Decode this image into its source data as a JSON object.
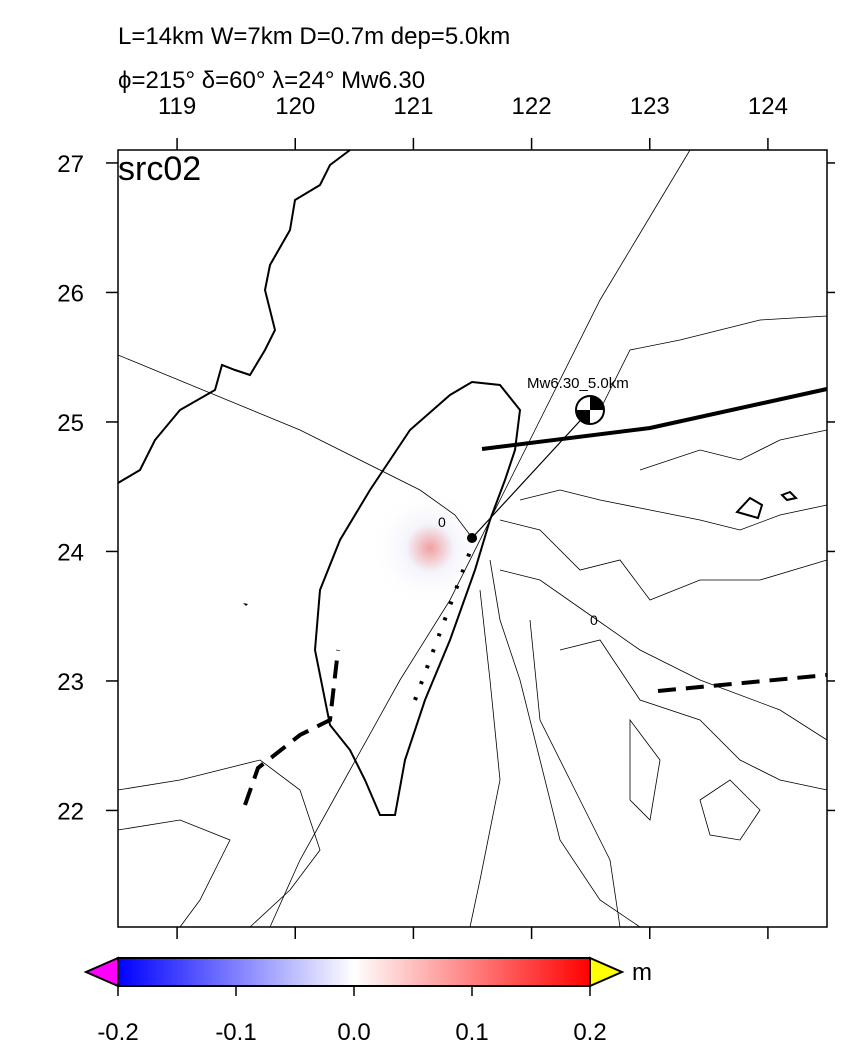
{
  "chart_data": {
    "type": "map",
    "title": "L=14km W=7km D=0.7m dep=5.0km",
    "subtitle": "ϕ=215° δ=60° λ=24° Mw6.30",
    "panel_label": "src02",
    "event_label": "Mw6.30_5.0km",
    "contour_labels": [
      "0",
      "0"
    ],
    "xlim": [
      118.5,
      124.5
    ],
    "xticks": [
      119,
      120,
      121,
      122,
      123,
      124
    ],
    "ylim": [
      21.1,
      27.1
    ],
    "yticks": [
      22,
      23,
      24,
      25,
      26,
      27
    ],
    "colorbar": {
      "unit": "m",
      "lim": [
        -0.2,
        0.2
      ],
      "ticks": [
        -0.2,
        -0.1,
        {
          "value": 0,
          "label": "0.0"
        },
        0.1,
        0.2
      ]
    }
  }
}
